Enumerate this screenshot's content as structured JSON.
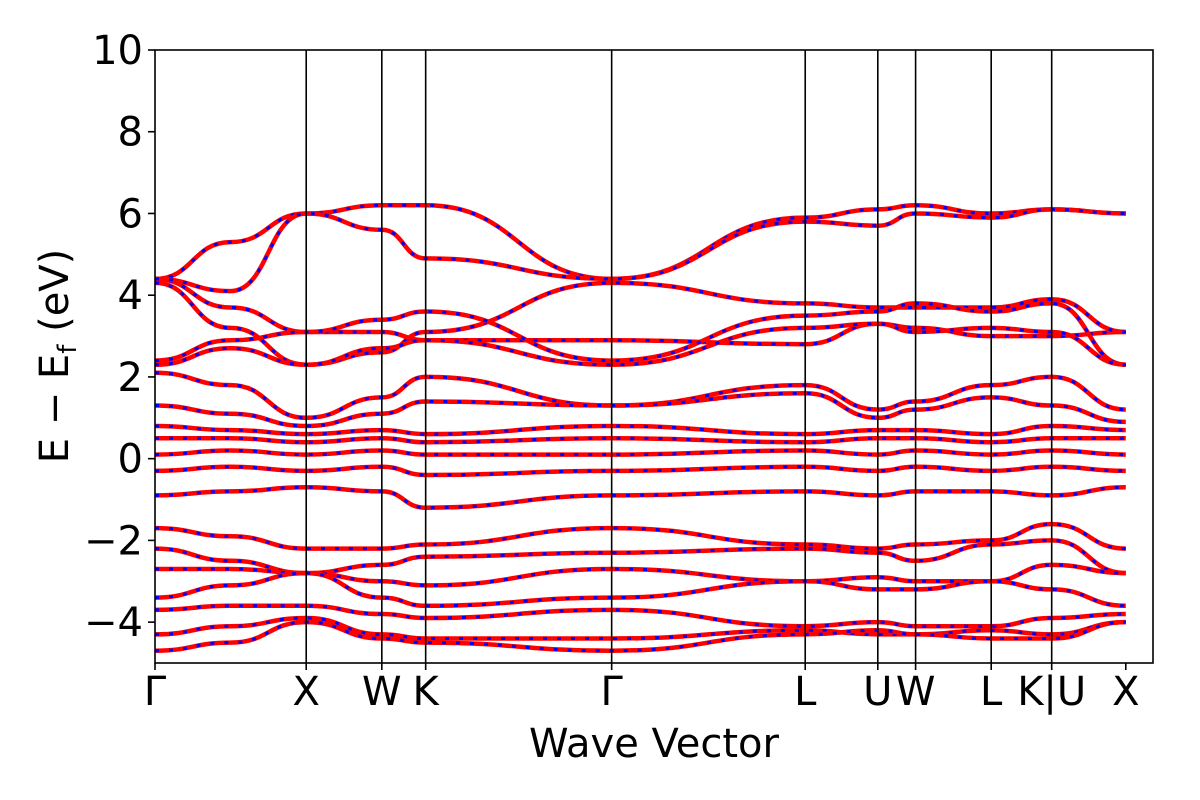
{
  "chart_data": {
    "type": "line",
    "title": "",
    "xlabel": "Wave Vector",
    "ylabel_parts": {
      "main": "E − E",
      "subscript": "f",
      "unit": " (eV)"
    },
    "ylim": [
      -5,
      10
    ],
    "y_ticks": [
      10,
      8,
      6,
      4,
      2,
      0,
      -2,
      -4
    ],
    "y_tick_labels": [
      "10",
      "8",
      "6",
      "4",
      "2",
      "0",
      "−2",
      "−4"
    ],
    "x_range": [
      0,
      6.6
    ],
    "kpoints": [
      {
        "label": "Γ",
        "x": 0
      },
      {
        "label": "X",
        "x": 1.0
      },
      {
        "label": "W",
        "x": 1.5
      },
      {
        "label": "K",
        "x": 1.79
      },
      {
        "label": "Γ",
        "x": 3.02
      },
      {
        "label": "L",
        "x": 4.3
      },
      {
        "label": "U",
        "x": 4.78
      },
      {
        "label": "W",
        "x": 5.03
      },
      {
        "label": "L",
        "x": 5.53
      },
      {
        "label": "K|U",
        "x": 5.93
      },
      {
        "label": "X",
        "x": 6.42
      }
    ],
    "grid": false,
    "legend": "none",
    "series_styles": [
      {
        "color": "#ff0000",
        "style": "solid"
      },
      {
        "color": "#0000ff",
        "style": "dashed"
      }
    ],
    "bands": [
      [
        4.4,
        3.7,
        3.1,
        3.1,
        2.9,
        2.9,
        2.8,
        3.3,
        3.2,
        3.0,
        3.0,
        3.1
      ],
      [
        4.4,
        5.3,
        6.0,
        6.2,
        6.2,
        4.4,
        5.9,
        6.1,
        6.2,
        6.0,
        6.1,
        6.0
      ],
      [
        4.4,
        4.1,
        6.0,
        5.6,
        4.9,
        4.4,
        5.8,
        5.7,
        6.0,
        5.9,
        6.1,
        6.0
      ],
      [
        4.3,
        3.2,
        2.3,
        2.6,
        3.1,
        4.3,
        3.8,
        3.7,
        3.7,
        3.7,
        3.9,
        3.1
      ],
      [
        2.4,
        2.9,
        3.1,
        3.4,
        3.6,
        2.4,
        3.5,
        3.6,
        3.8,
        3.6,
        3.8,
        2.3
      ],
      [
        2.3,
        2.7,
        2.3,
        2.7,
        2.9,
        2.3,
        3.2,
        3.3,
        3.1,
        3.2,
        3.1,
        2.3
      ],
      [
        2.1,
        1.8,
        1.0,
        1.5,
        2.0,
        1.3,
        1.8,
        1.2,
        1.4,
        1.8,
        2.0,
        1.2
      ],
      [
        1.3,
        1.1,
        0.8,
        1.1,
        1.4,
        1.3,
        1.6,
        1.0,
        1.2,
        1.5,
        1.3,
        0.9
      ],
      [
        0.8,
        0.7,
        0.6,
        0.7,
        0.6,
        0.8,
        0.6,
        0.7,
        0.7,
        0.6,
        0.8,
        0.7
      ],
      [
        0.5,
        0.5,
        0.4,
        0.5,
        0.4,
        0.5,
        0.4,
        0.5,
        0.5,
        0.4,
        0.5,
        0.5
      ],
      [
        0.1,
        0.2,
        0.1,
        0.2,
        0.1,
        0.1,
        0.2,
        0.1,
        0.2,
        0.1,
        0.2,
        0.1
      ],
      [
        -0.3,
        -0.2,
        -0.3,
        -0.2,
        -0.4,
        -0.3,
        -0.2,
        -0.3,
        -0.2,
        -0.3,
        -0.2,
        -0.3
      ],
      [
        -0.9,
        -0.8,
        -0.7,
        -0.8,
        -1.2,
        -0.9,
        -0.8,
        -0.9,
        -0.8,
        -0.8,
        -0.9,
        -0.7
      ],
      [
        -1.7,
        -1.9,
        -2.2,
        -2.2,
        -2.1,
        -1.7,
        -2.1,
        -2.2,
        -2.1,
        -2.0,
        -1.6,
        -2.2
      ],
      [
        -2.2,
        -2.5,
        -2.8,
        -2.6,
        -2.4,
        -2.3,
        -2.2,
        -2.3,
        -2.5,
        -2.1,
        -2.0,
        -2.8
      ],
      [
        -2.7,
        -2.7,
        -2.8,
        -3.0,
        -3.1,
        -2.7,
        -3.0,
        -2.9,
        -3.0,
        -3.0,
        -2.6,
        -2.8
      ],
      [
        -3.4,
        -3.1,
        -2.8,
        -3.4,
        -3.6,
        -3.4,
        -3.0,
        -3.2,
        -3.2,
        -3.0,
        -3.2,
        -3.6
      ],
      [
        -3.7,
        -3.6,
        -3.6,
        -3.8,
        -3.9,
        -3.7,
        -4.1,
        -4.0,
        -4.1,
        -4.1,
        -3.9,
        -3.8
      ],
      [
        -4.3,
        -4.1,
        -3.9,
        -4.3,
        -4.4,
        -4.4,
        -4.2,
        -4.3,
        -4.3,
        -4.2,
        -4.3,
        -4.0
      ],
      [
        -4.7,
        -4.5,
        -4.0,
        -4.4,
        -4.5,
        -4.7,
        -4.3,
        -4.2,
        -4.3,
        -4.4,
        -4.4,
        -4.0
      ]
    ],
    "band_x": [
      0,
      0.5,
      1.0,
      1.5,
      1.79,
      3.02,
      4.3,
      4.78,
      5.03,
      5.53,
      5.93,
      6.42
    ]
  }
}
